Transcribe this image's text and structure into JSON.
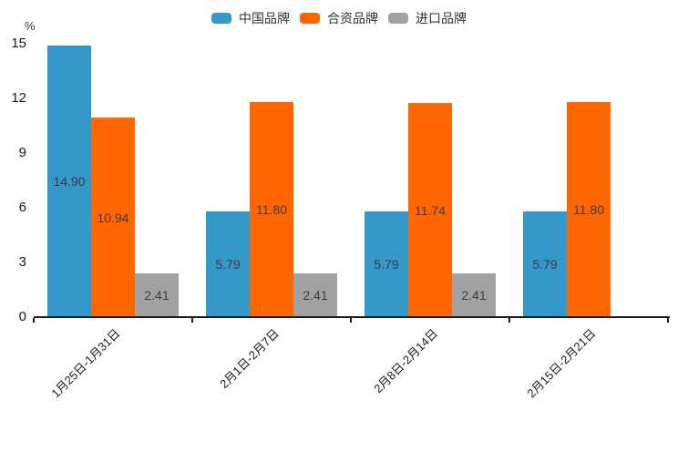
{
  "chart_data": {
    "type": "bar",
    "title": "",
    "unit": "%",
    "categories": [
      "1月25日-1月31日",
      "2月1日-2月7日",
      "2月8日-2月14日",
      "2月15日-2月21日"
    ],
    "series": [
      {
        "name": "中国品牌",
        "color": "#3498c9",
        "values": [
          14.9,
          5.79,
          5.79,
          5.79
        ]
      },
      {
        "name": "合资品牌",
        "color": "#ff6600",
        "values": [
          10.94,
          11.8,
          11.74,
          11.8
        ]
      },
      {
        "name": "进口品牌",
        "color": "#a2a2a2",
        "values": [
          2.41,
          2.41,
          2.41,
          null
        ]
      }
    ],
    "ylim": [
      0,
      15
    ],
    "yticks": [
      0,
      3,
      6,
      9,
      12,
      15
    ],
    "legend_position": "top-center",
    "grid": false,
    "value_labels": "inside-center",
    "value_label_format": "2dp",
    "axis_color": "#1a1a1a",
    "label_text_color": "#3c3c3c"
  }
}
